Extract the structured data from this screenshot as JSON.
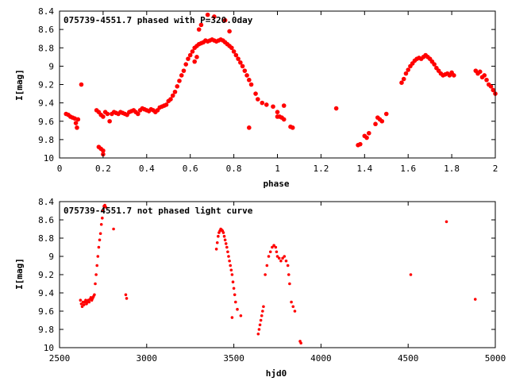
{
  "chart_data": [
    {
      "type": "scatter",
      "title": "075739-4551.7 phased with P=320.0day",
      "xlabel": "phase",
      "ylabel": "I[mag]",
      "xlim": [
        0,
        2
      ],
      "ylim": [
        10,
        8.4
      ],
      "y_inverted": true,
      "xticks": [
        "0",
        "0.2",
        "0.4",
        "0.6",
        "0.8",
        "1",
        "1.2",
        "1.4",
        "1.6",
        "1.8",
        "2"
      ],
      "yticks": [
        "8.4",
        "8.6",
        "8.8",
        "9",
        "9.2",
        "9.4",
        "9.6",
        "9.8",
        "10"
      ],
      "color": "#ff0000",
      "series": [
        {
          "points": [
            [
              0.03,
              9.52
            ],
            [
              0.04,
              9.53
            ],
            [
              0.05,
              9.55
            ],
            [
              0.06,
              9.56
            ],
            [
              0.07,
              9.57
            ],
            [
              0.075,
              9.62
            ],
            [
              0.08,
              9.67
            ],
            [
              0.085,
              9.58
            ],
            [
              0.1,
              9.2
            ],
            [
              0.17,
              9.48
            ],
            [
              0.18,
              9.5
            ],
            [
              0.19,
              9.53
            ],
            [
              0.2,
              9.55
            ],
            [
              0.21,
              9.5
            ],
            [
              0.22,
              9.52
            ],
            [
              0.23,
              9.6
            ],
            [
              0.24,
              9.52
            ],
            [
              0.25,
              9.5
            ],
            [
              0.26,
              9.51
            ],
            [
              0.27,
              9.52
            ],
            [
              0.28,
              9.5
            ],
            [
              0.29,
              9.51
            ],
            [
              0.3,
              9.52
            ],
            [
              0.31,
              9.53
            ],
            [
              0.32,
              9.5
            ],
            [
              0.33,
              9.49
            ],
            [
              0.34,
              9.48
            ],
            [
              0.35,
              9.5
            ],
            [
              0.36,
              9.52
            ],
            [
              0.37,
              9.48
            ],
            [
              0.38,
              9.46
            ],
            [
              0.39,
              9.47
            ],
            [
              0.4,
              9.48
            ],
            [
              0.41,
              9.49
            ],
            [
              0.42,
              9.47
            ],
            [
              0.43,
              9.48
            ],
            [
              0.44,
              9.5
            ],
            [
              0.45,
              9.48
            ],
            [
              0.46,
              9.45
            ],
            [
              0.18,
              9.88
            ],
            [
              0.19,
              9.9
            ],
            [
              0.2,
              9.92
            ],
            [
              0.2,
              9.96
            ],
            [
              0.47,
              9.44
            ],
            [
              0.48,
              9.43
            ],
            [
              0.49,
              9.42
            ],
            [
              0.5,
              9.38
            ],
            [
              0.51,
              9.36
            ],
            [
              0.52,
              9.32
            ],
            [
              0.53,
              9.28
            ],
            [
              0.54,
              9.22
            ],
            [
              0.55,
              9.16
            ],
            [
              0.56,
              9.1
            ],
            [
              0.57,
              9.05
            ],
            [
              0.58,
              8.98
            ],
            [
              0.59,
              8.92
            ],
            [
              0.6,
              8.88
            ],
            [
              0.61,
              8.84
            ],
            [
              0.62,
              8.8
            ],
            [
              0.63,
              8.78
            ],
            [
              0.64,
              8.76
            ],
            [
              0.65,
              8.75
            ],
            [
              0.66,
              8.74
            ],
            [
              0.67,
              8.72
            ],
            [
              0.68,
              8.73
            ],
            [
              0.69,
              8.72
            ],
            [
              0.7,
              8.71
            ],
            [
              0.71,
              8.72
            ],
            [
              0.72,
              8.73
            ],
            [
              0.73,
              8.72
            ],
            [
              0.74,
              8.71
            ],
            [
              0.75,
              8.72
            ],
            [
              0.76,
              8.74
            ],
            [
              0.77,
              8.76
            ],
            [
              0.78,
              8.78
            ],
            [
              0.79,
              8.8
            ],
            [
              0.8,
              8.84
            ],
            [
              0.81,
              8.88
            ],
            [
              0.82,
              8.92
            ],
            [
              0.83,
              8.96
            ],
            [
              0.84,
              9.0
            ],
            [
              0.85,
              9.05
            ],
            [
              0.86,
              9.1
            ],
            [
              0.87,
              9.15
            ],
            [
              0.88,
              9.2
            ],
            [
              0.9,
              9.3
            ],
            [
              0.91,
              9.36
            ],
            [
              0.62,
              8.95
            ],
            [
              0.63,
              8.9
            ],
            [
              0.64,
              8.6
            ],
            [
              0.65,
              8.55
            ],
            [
              0.68,
              8.44
            ],
            [
              0.71,
              8.46
            ],
            [
              0.76,
              8.5
            ],
            [
              0.78,
              8.62
            ],
            [
              0.87,
              9.67
            ],
            [
              0.93,
              9.4
            ],
            [
              0.95,
              9.42
            ],
            [
              0.98,
              9.44
            ],
            [
              1.0,
              9.5
            ],
            [
              1.0,
              9.55
            ],
            [
              1.01,
              9.55
            ],
            [
              1.02,
              9.56
            ],
            [
              1.03,
              9.58
            ],
            [
              1.03,
              9.43
            ],
            [
              1.06,
              9.66
            ],
            [
              1.07,
              9.67
            ],
            [
              1.27,
              9.46
            ],
            [
              1.37,
              9.86
            ],
            [
              1.38,
              9.85
            ],
            [
              1.4,
              9.76
            ],
            [
              1.41,
              9.78
            ],
            [
              1.42,
              9.73
            ],
            [
              1.45,
              9.63
            ],
            [
              1.46,
              9.56
            ],
            [
              1.47,
              9.58
            ],
            [
              1.48,
              9.6
            ],
            [
              1.5,
              9.52
            ],
            [
              1.57,
              9.18
            ],
            [
              1.58,
              9.14
            ],
            [
              1.59,
              9.08
            ],
            [
              1.6,
              9.04
            ],
            [
              1.61,
              9.0
            ],
            [
              1.62,
              8.97
            ],
            [
              1.63,
              8.94
            ],
            [
              1.64,
              8.92
            ],
            [
              1.65,
              8.91
            ],
            [
              1.66,
              8.92
            ],
            [
              1.67,
              8.9
            ],
            [
              1.68,
              8.88
            ],
            [
              1.69,
              8.9
            ],
            [
              1.7,
              8.92
            ],
            [
              1.71,
              8.95
            ],
            [
              1.72,
              8.98
            ],
            [
              1.73,
              9.02
            ],
            [
              1.74,
              9.05
            ],
            [
              1.75,
              9.08
            ],
            [
              1.76,
              9.1
            ],
            [
              1.77,
              9.09
            ],
            [
              1.78,
              9.08
            ],
            [
              1.79,
              9.1
            ],
            [
              1.8,
              9.07
            ],
            [
              1.81,
              9.1
            ],
            [
              1.91,
              9.05
            ],
            [
              1.92,
              9.08
            ],
            [
              1.93,
              9.06
            ],
            [
              1.94,
              9.12
            ],
            [
              1.95,
              9.1
            ],
            [
              1.96,
              9.15
            ],
            [
              1.97,
              9.2
            ],
            [
              1.98,
              9.22
            ],
            [
              1.99,
              9.26
            ],
            [
              2.0,
              9.3
            ]
          ]
        }
      ]
    },
    {
      "type": "scatter",
      "title": "075739-4551.7 not phased light curve",
      "xlabel": "hjd0",
      "ylabel": "I[mag]",
      "xlim": [
        2500,
        5000
      ],
      "ylim": [
        10,
        8.4
      ],
      "y_inverted": true,
      "xticks": [
        "2500",
        "3000",
        "3500",
        "4000",
        "4500",
        "5000"
      ],
      "yticks": [
        "8.4",
        "8.6",
        "8.8",
        "9",
        "9.2",
        "9.4",
        "9.6",
        "9.8",
        "10"
      ],
      "color": "#ff0000",
      "series": [
        {
          "points": [
            [
              2620,
              9.48
            ],
            [
              2625,
              9.52
            ],
            [
              2630,
              9.55
            ],
            [
              2635,
              9.5
            ],
            [
              2640,
              9.53
            ],
            [
              2645,
              9.5
            ],
            [
              2650,
              9.48
            ],
            [
              2655,
              9.52
            ],
            [
              2660,
              9.5
            ],
            [
              2665,
              9.48
            ],
            [
              2670,
              9.5
            ],
            [
              2675,
              9.47
            ],
            [
              2680,
              9.45
            ],
            [
              2685,
              9.48
            ],
            [
              2690,
              9.46
            ],
            [
              2695,
              9.44
            ],
            [
              2700,
              9.42
            ],
            [
              2705,
              9.3
            ],
            [
              2710,
              9.2
            ],
            [
              2715,
              9.1
            ],
            [
              2720,
              9.0
            ],
            [
              2725,
              8.9
            ],
            [
              2730,
              8.82
            ],
            [
              2735,
              8.75
            ],
            [
              2740,
              8.65
            ],
            [
              2745,
              8.58
            ],
            [
              2750,
              8.5
            ],
            [
              2755,
              8.45
            ],
            [
              2760,
              8.44
            ],
            [
              2765,
              8.46
            ],
            [
              2810,
              8.7
            ],
            [
              2880,
              9.42
            ],
            [
              2885,
              9.46
            ],
            [
              3400,
              8.92
            ],
            [
              3405,
              8.85
            ],
            [
              3410,
              8.78
            ],
            [
              3415,
              8.74
            ],
            [
              3420,
              8.72
            ],
            [
              3425,
              8.7
            ],
            [
              3430,
              8.71
            ],
            [
              3435,
              8.72
            ],
            [
              3440,
              8.74
            ],
            [
              3445,
              8.78
            ],
            [
              3450,
              8.82
            ],
            [
              3455,
              8.86
            ],
            [
              3460,
              8.9
            ],
            [
              3465,
              8.95
            ],
            [
              3470,
              9.0
            ],
            [
              3475,
              9.05
            ],
            [
              3480,
              9.1
            ],
            [
              3485,
              9.15
            ],
            [
              3490,
              9.2
            ],
            [
              3495,
              9.28
            ],
            [
              3500,
              9.35
            ],
            [
              3505,
              9.42
            ],
            [
              3510,
              9.5
            ],
            [
              3520,
              9.58
            ],
            [
              3540,
              9.65
            ],
            [
              3490,
              9.67
            ],
            [
              3640,
              9.85
            ],
            [
              3645,
              9.8
            ],
            [
              3650,
              9.75
            ],
            [
              3655,
              9.7
            ],
            [
              3660,
              9.65
            ],
            [
              3665,
              9.6
            ],
            [
              3670,
              9.55
            ],
            [
              3680,
              9.2
            ],
            [
              3690,
              9.1
            ],
            [
              3700,
              9.0
            ],
            [
              3710,
              8.95
            ],
            [
              3720,
              8.9
            ],
            [
              3730,
              8.88
            ],
            [
              3740,
              8.9
            ],
            [
              3745,
              8.95
            ],
            [
              3750,
              9.0
            ],
            [
              3760,
              9.02
            ],
            [
              3770,
              9.05
            ],
            [
              3780,
              9.02
            ],
            [
              3790,
              9.0
            ],
            [
              3800,
              9.05
            ],
            [
              3810,
              9.1
            ],
            [
              3815,
              9.2
            ],
            [
              3820,
              9.3
            ],
            [
              3830,
              9.5
            ],
            [
              3840,
              9.55
            ],
            [
              3850,
              9.6
            ],
            [
              3880,
              9.93
            ],
            [
              3885,
              9.95
            ],
            [
              4515,
              9.2
            ],
            [
              4720,
              8.62
            ],
            [
              4885,
              9.47
            ]
          ]
        }
      ]
    }
  ]
}
